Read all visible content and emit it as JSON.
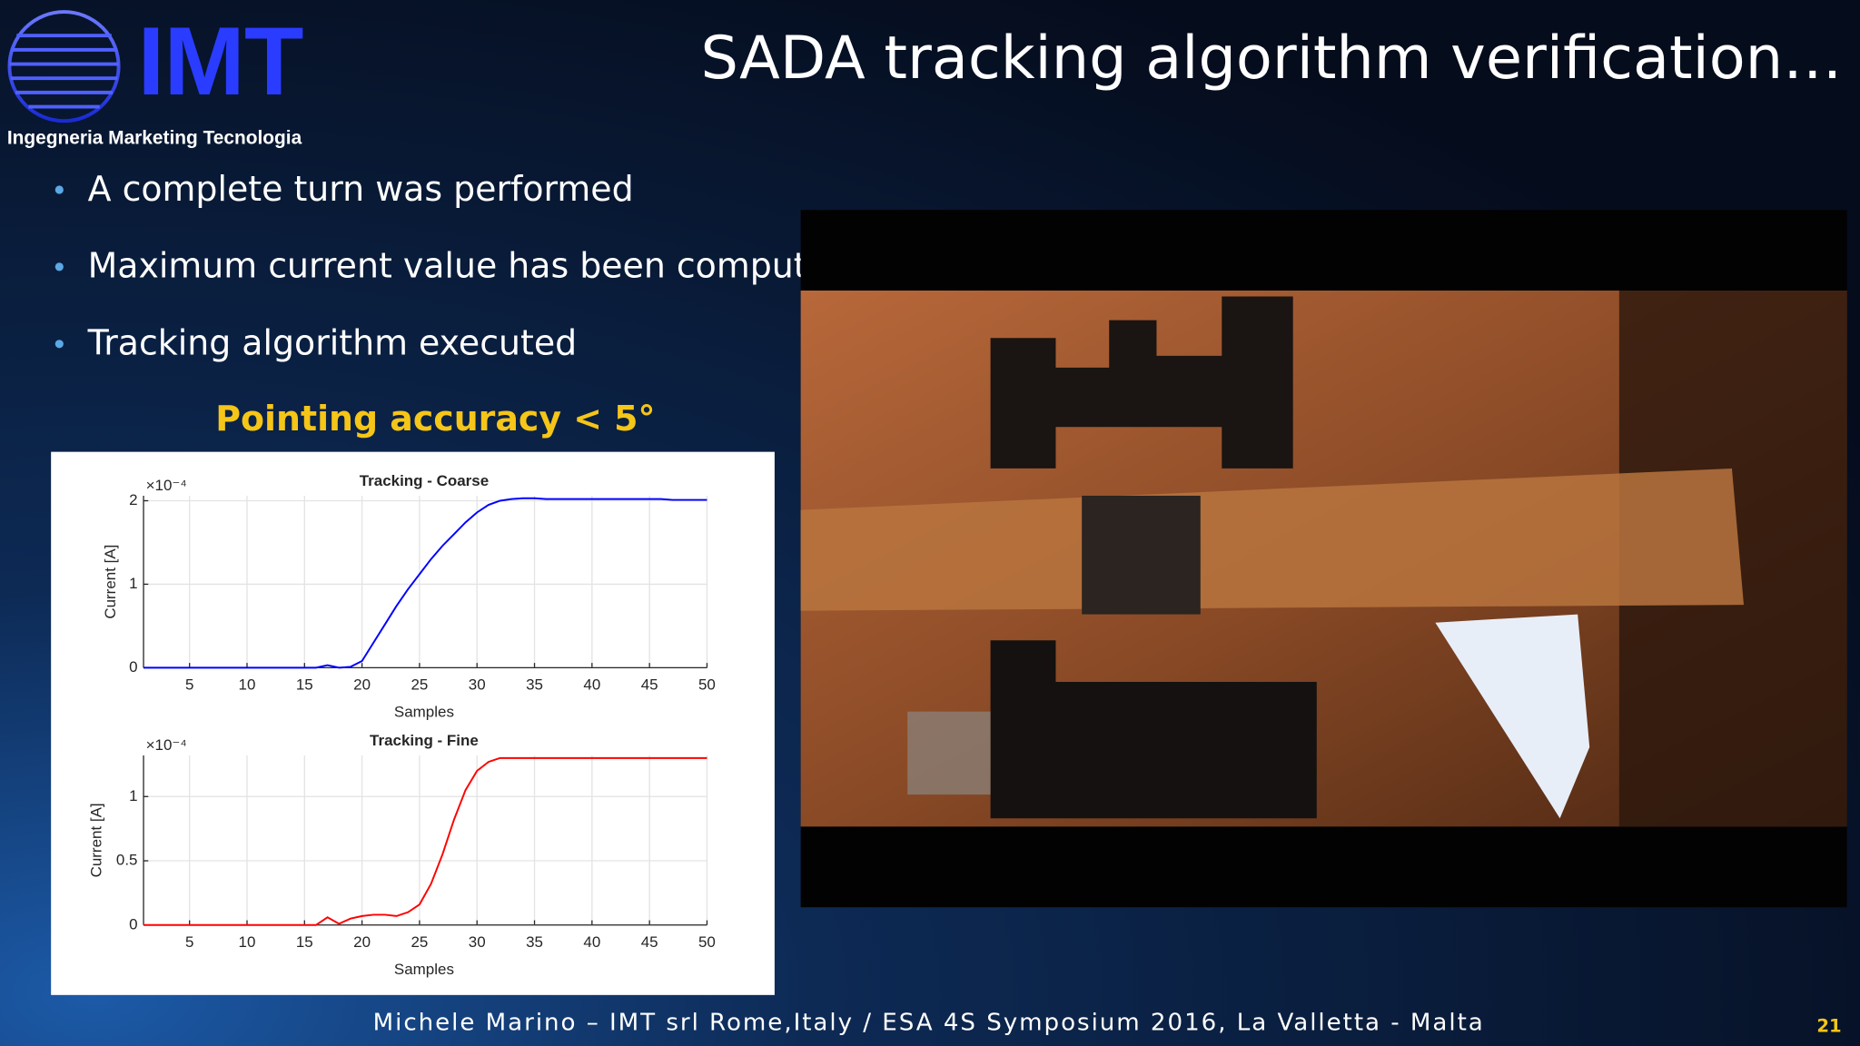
{
  "logo": {
    "name": "IMT",
    "tagline": "Ingegneria Marketing Tecnologia"
  },
  "header": {
    "title": "SADA tracking algorithm verification…"
  },
  "bullets": [
    "A complete turn was performed",
    "Maximum current value has been computed",
    "Tracking algorithm executed"
  ],
  "highlight": "Pointing accuracy < 5°",
  "chart_data": [
    {
      "type": "line",
      "title": "Tracking - Coarse",
      "x_label": "Samples",
      "y_label": "Current [A]",
      "y_scale_label": "×10⁻⁴",
      "color": "#0000ff",
      "x": [
        1,
        2,
        3,
        4,
        5,
        6,
        7,
        8,
        9,
        10,
        11,
        12,
        13,
        14,
        15,
        16,
        17,
        18,
        19,
        20,
        21,
        22,
        23,
        24,
        25,
        26,
        27,
        28,
        29,
        30,
        31,
        32,
        33,
        34,
        35,
        36,
        37,
        38,
        39,
        40,
        41,
        42,
        43,
        44,
        45,
        46,
        47,
        48,
        49,
        50
      ],
      "values": [
        0,
        0,
        0,
        0,
        0,
        0,
        0,
        0,
        0,
        0,
        0,
        0,
        0,
        0,
        0,
        0,
        0.03,
        0,
        0.01,
        0.08,
        0.3,
        0.52,
        0.74,
        0.94,
        1.12,
        1.3,
        1.46,
        1.6,
        1.74,
        1.86,
        1.95,
        2.0,
        2.02,
        2.03,
        2.03,
        2.02,
        2.02,
        2.02,
        2.02,
        2.02,
        2.02,
        2.02,
        2.02,
        2.02,
        2.02,
        2.02,
        2.01,
        2.01,
        2.01,
        2.01
      ],
      "xlim": [
        1,
        50
      ],
      "xticks": [
        5,
        10,
        15,
        20,
        25,
        30,
        35,
        40,
        45,
        50
      ],
      "ylim": [
        0,
        2.06
      ],
      "yticks": [
        0,
        1,
        2
      ],
      "grid": true
    },
    {
      "type": "line",
      "title": "Tracking - Fine",
      "x_label": "Samples",
      "y_label": "Current [A]",
      "y_scale_label": "×10⁻⁴",
      "color": "#ff0000",
      "x": [
        1,
        2,
        3,
        4,
        5,
        6,
        7,
        8,
        9,
        10,
        11,
        12,
        13,
        14,
        15,
        16,
        17,
        18,
        19,
        20,
        21,
        22,
        23,
        24,
        25,
        26,
        27,
        28,
        29,
        30,
        31,
        32,
        33,
        34,
        35,
        36,
        37,
        38,
        39,
        40,
        41,
        42,
        43,
        44,
        45,
        46,
        47,
        48,
        49,
        50
      ],
      "values": [
        0,
        0,
        0,
        0,
        0,
        0,
        0,
        0,
        0,
        0,
        0,
        0,
        0,
        0,
        0,
        0,
        0.06,
        0.01,
        0.05,
        0.07,
        0.08,
        0.08,
        0.07,
        0.1,
        0.16,
        0.32,
        0.55,
        0.82,
        1.05,
        1.2,
        1.27,
        1.3,
        1.3,
        1.3,
        1.3,
        1.3,
        1.3,
        1.3,
        1.3,
        1.3,
        1.3,
        1.3,
        1.3,
        1.3,
        1.3,
        1.3,
        1.3,
        1.3,
        1.3,
        1.3
      ],
      "xlim": [
        1,
        50
      ],
      "xticks": [
        5,
        10,
        15,
        20,
        25,
        30,
        35,
        40,
        45,
        50
      ],
      "ylim": [
        0,
        1.32
      ],
      "yticks": [
        0,
        0.5,
        1
      ],
      "grid": true
    }
  ],
  "footer": {
    "text": "Michele Marino – IMT srl Rome,Italy / ESA 4S Symposium 2016, La Valletta - Malta",
    "page": "21"
  }
}
